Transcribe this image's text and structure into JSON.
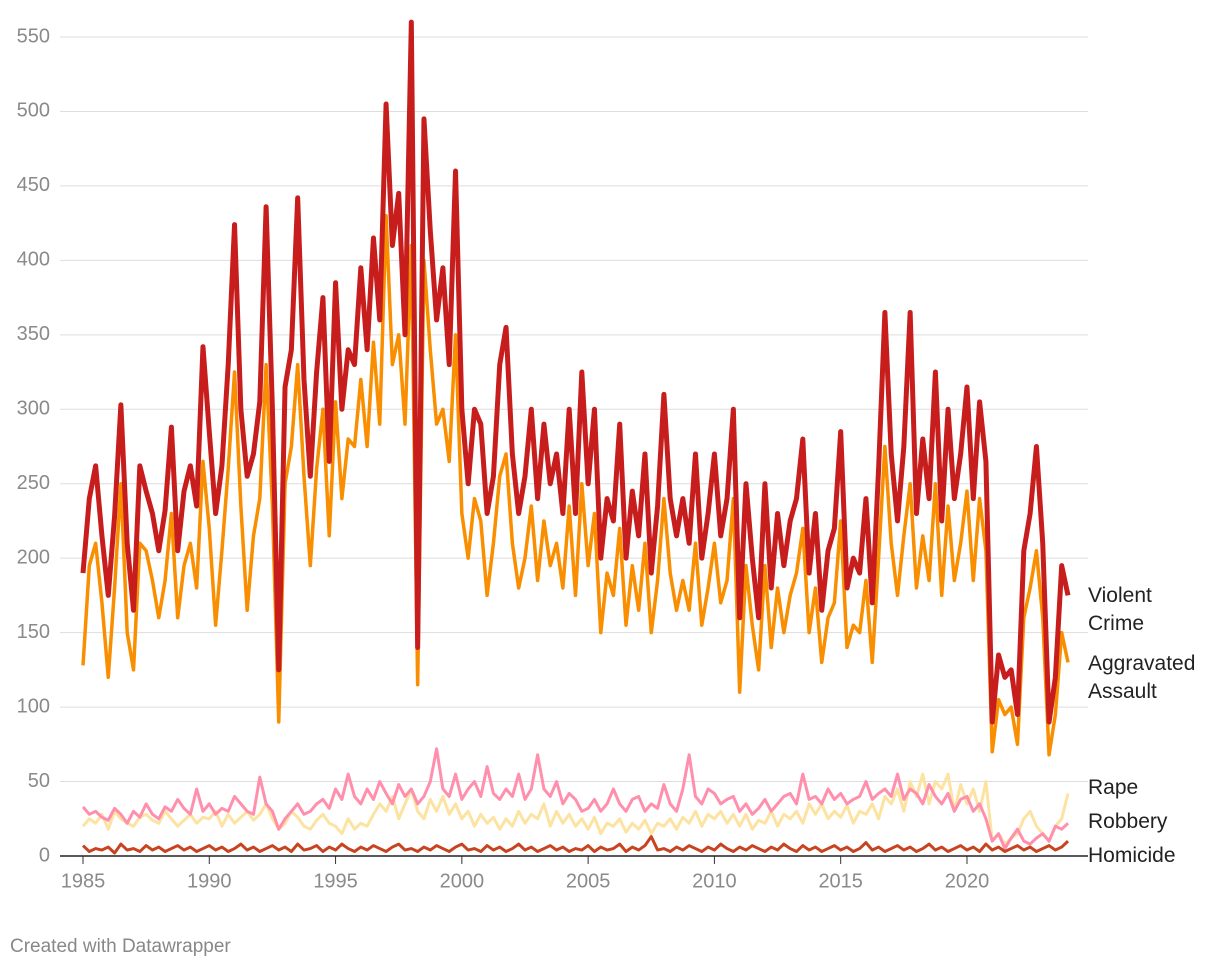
{
  "chart_data": {
    "type": "line",
    "credit": "Created with Datawrapper",
    "xlim": [
      1985,
      2024
    ],
    "xticks": [
      1985,
      1990,
      1995,
      2000,
      2005,
      2010,
      2015,
      2020
    ],
    "ylim": [
      0,
      550
    ],
    "yticks": [
      0,
      50,
      100,
      150,
      200,
      250,
      300,
      350,
      400,
      450,
      500,
      550
    ],
    "grid": true,
    "x": [
      1985,
      1985.25,
      1985.5,
      1985.75,
      1986,
      1986.25,
      1986.5,
      1986.75,
      1987,
      1987.25,
      1987.5,
      1987.75,
      1988,
      1988.25,
      1988.5,
      1988.75,
      1989,
      1989.25,
      1989.5,
      1989.75,
      1990,
      1990.25,
      1990.5,
      1990.75,
      1991,
      1991.25,
      1991.5,
      1991.75,
      1992,
      1992.25,
      1992.5,
      1992.75,
      1993,
      1993.25,
      1993.5,
      1993.75,
      1994,
      1994.25,
      1994.5,
      1994.75,
      1995,
      1995.25,
      1995.5,
      1995.75,
      1996,
      1996.25,
      1996.5,
      1996.75,
      1997,
      1997.25,
      1997.5,
      1997.75,
      1998,
      1998.25,
      1998.5,
      1998.75,
      1999,
      1999.25,
      1999.5,
      1999.75,
      2000,
      2000.25,
      2000.5,
      2000.75,
      2001,
      2001.25,
      2001.5,
      2001.75,
      2002,
      2002.25,
      2002.5,
      2002.75,
      2003,
      2003.25,
      2003.5,
      2003.75,
      2004,
      2004.25,
      2004.5,
      2004.75,
      2005,
      2005.25,
      2005.5,
      2005.75,
      2006,
      2006.25,
      2006.5,
      2006.75,
      2007,
      2007.25,
      2007.5,
      2007.75,
      2008,
      2008.25,
      2008.5,
      2008.75,
      2009,
      2009.25,
      2009.5,
      2009.75,
      2010,
      2010.25,
      2010.5,
      2010.75,
      2011,
      2011.25,
      2011.5,
      2011.75,
      2012,
      2012.25,
      2012.5,
      2012.75,
      2013,
      2013.25,
      2013.5,
      2013.75,
      2014,
      2014.25,
      2014.5,
      2014.75,
      2015,
      2015.25,
      2015.5,
      2015.75,
      2016,
      2016.25,
      2016.5,
      2016.75,
      2017,
      2017.25,
      2017.5,
      2017.75,
      2018,
      2018.25,
      2018.5,
      2018.75,
      2019,
      2019.25,
      2019.5,
      2019.75,
      2020,
      2020.25,
      2020.5,
      2020.75,
      2021,
      2021.25,
      2021.5,
      2021.75,
      2022,
      2022.25,
      2022.5,
      2022.75,
      2023,
      2023.25,
      2023.5,
      2023.75,
      2024
    ],
    "series": [
      {
        "name": "Violent Crime",
        "color": "#c71e1d",
        "values": [
          190,
          240,
          262,
          215,
          175,
          228,
          303,
          210,
          165,
          262,
          245,
          230,
          205,
          232,
          288,
          205,
          245,
          262,
          235,
          342,
          285,
          230,
          262,
          330,
          424,
          300,
          255,
          270,
          305,
          436,
          300,
          125,
          315,
          340,
          442,
          320,
          255,
          325,
          375,
          265,
          385,
          300,
          340,
          330,
          395,
          340,
          415,
          360,
          505,
          410,
          445,
          350,
          560,
          140,
          495,
          420,
          360,
          395,
          330,
          460,
          300,
          250,
          300,
          290,
          230,
          255,
          330,
          355,
          270,
          230,
          255,
          300,
          240,
          290,
          250,
          270,
          230,
          300,
          230,
          325,
          250,
          300,
          200,
          240,
          225,
          290,
          200,
          245,
          215,
          270,
          190,
          235,
          310,
          240,
          215,
          240,
          210,
          270,
          200,
          230,
          270,
          215,
          240,
          300,
          160,
          250,
          200,
          160,
          250,
          180,
          230,
          195,
          225,
          240,
          280,
          190,
          230,
          165,
          205,
          220,
          285,
          180,
          200,
          190,
          240,
          170,
          260,
          365,
          270,
          225,
          275,
          365,
          230,
          280,
          240,
          325,
          225,
          300,
          240,
          270,
          315,
          240,
          305,
          265,
          90,
          135,
          120,
          125,
          95,
          205,
          230,
          275,
          210,
          90,
          120,
          195,
          175
        ]
      },
      {
        "name": "Aggravated Assault",
        "color": "#f98e00",
        "values": [
          128,
          195,
          210,
          170,
          120,
          180,
          250,
          150,
          125,
          210,
          205,
          185,
          160,
          185,
          230,
          160,
          195,
          210,
          180,
          265,
          220,
          155,
          205,
          260,
          325,
          235,
          165,
          215,
          240,
          330,
          235,
          90,
          250,
          275,
          330,
          255,
          195,
          260,
          300,
          215,
          305,
          240,
          280,
          275,
          320,
          275,
          345,
          290,
          430,
          330,
          350,
          290,
          410,
          115,
          400,
          340,
          290,
          300,
          265,
          350,
          230,
          200,
          240,
          225,
          175,
          210,
          255,
          270,
          210,
          180,
          200,
          235,
          185,
          225,
          195,
          210,
          180,
          235,
          175,
          250,
          195,
          230,
          150,
          190,
          175,
          220,
          155,
          195,
          165,
          210,
          150,
          185,
          240,
          190,
          165,
          185,
          165,
          210,
          155,
          180,
          210,
          170,
          185,
          240,
          110,
          195,
          155,
          125,
          195,
          140,
          180,
          150,
          175,
          190,
          220,
          150,
          180,
          130,
          160,
          170,
          225,
          140,
          155,
          150,
          185,
          130,
          200,
          275,
          210,
          175,
          215,
          250,
          180,
          215,
          185,
          250,
          175,
          235,
          185,
          210,
          245,
          185,
          240,
          205,
          70,
          105,
          95,
          100,
          75,
          160,
          180,
          205,
          160,
          68,
          95,
          150,
          130
        ]
      },
      {
        "name": "Rape",
        "color": "#fde3a1",
        "values": [
          20,
          25,
          22,
          28,
          18,
          30,
          25,
          22,
          20,
          26,
          28,
          24,
          22,
          30,
          25,
          20,
          24,
          28,
          22,
          26,
          25,
          30,
          20,
          28,
          22,
          26,
          30,
          24,
          28,
          35,
          25,
          18,
          22,
          30,
          26,
          20,
          18,
          24,
          28,
          22,
          20,
          15,
          25,
          18,
          22,
          20,
          28,
          35,
          30,
          40,
          25,
          35,
          45,
          30,
          25,
          38,
          30,
          40,
          28,
          35,
          25,
          30,
          20,
          28,
          22,
          26,
          18,
          25,
          20,
          30,
          22,
          28,
          25,
          35,
          20,
          30,
          22,
          28,
          20,
          25,
          18,
          26,
          15,
          22,
          20,
          25,
          16,
          22,
          18,
          24,
          15,
          22,
          20,
          25,
          18,
          26,
          22,
          30,
          20,
          28,
          25,
          30,
          22,
          28,
          20,
          28,
          18,
          24,
          22,
          30,
          20,
          28,
          25,
          30,
          22,
          35,
          28,
          35,
          25,
          30,
          26,
          34,
          22,
          30,
          28,
          35,
          25,
          40,
          35,
          45,
          30,
          50,
          40,
          55,
          35,
          50,
          45,
          55,
          30,
          48,
          35,
          45,
          30,
          50,
          10,
          15,
          8,
          12,
          15,
          25,
          30,
          20,
          15,
          10,
          20,
          25,
          42
        ]
      },
      {
        "name": "Robbery",
        "color": "#ff8fac",
        "values": [
          33,
          28,
          30,
          26,
          24,
          32,
          28,
          22,
          30,
          26,
          35,
          28,
          25,
          33,
          30,
          38,
          32,
          28,
          45,
          30,
          35,
          28,
          32,
          30,
          40,
          35,
          30,
          28,
          53,
          35,
          30,
          18,
          25,
          30,
          35,
          28,
          30,
          35,
          38,
          32,
          45,
          38,
          55,
          40,
          35,
          45,
          38,
          50,
          42,
          35,
          48,
          40,
          45,
          35,
          40,
          50,
          72,
          45,
          40,
          55,
          38,
          45,
          50,
          40,
          60,
          42,
          38,
          45,
          40,
          55,
          38,
          45,
          68,
          45,
          40,
          50,
          35,
          42,
          38,
          30,
          32,
          38,
          30,
          35,
          45,
          35,
          30,
          38,
          40,
          30,
          35,
          32,
          48,
          35,
          30,
          45,
          68,
          40,
          35,
          45,
          42,
          35,
          38,
          40,
          30,
          35,
          28,
          32,
          38,
          30,
          35,
          40,
          42,
          35,
          55,
          38,
          40,
          35,
          45,
          38,
          42,
          35,
          38,
          40,
          50,
          38,
          42,
          45,
          40,
          55,
          38,
          45,
          42,
          35,
          48,
          40,
          35,
          42,
          30,
          38,
          40,
          30,
          35,
          25,
          10,
          15,
          5,
          12,
          18,
          10,
          8,
          12,
          15,
          10,
          20,
          18,
          22
        ]
      },
      {
        "name": "Homicide",
        "color": "#c8431f",
        "values": [
          7,
          3,
          5,
          4,
          6,
          2,
          8,
          4,
          5,
          3,
          7,
          4,
          6,
          3,
          5,
          7,
          4,
          6,
          3,
          5,
          7,
          4,
          6,
          3,
          5,
          8,
          4,
          6,
          3,
          5,
          7,
          4,
          6,
          3,
          8,
          4,
          5,
          7,
          3,
          6,
          4,
          8,
          5,
          3,
          6,
          4,
          7,
          5,
          3,
          6,
          8,
          4,
          5,
          3,
          6,
          4,
          7,
          5,
          3,
          6,
          8,
          4,
          5,
          3,
          7,
          4,
          6,
          3,
          5,
          8,
          4,
          6,
          3,
          5,
          7,
          4,
          6,
          3,
          5,
          4,
          7,
          3,
          6,
          4,
          5,
          8,
          3,
          6,
          4,
          7,
          13,
          4,
          5,
          3,
          6,
          4,
          7,
          5,
          3,
          6,
          4,
          8,
          5,
          3,
          6,
          4,
          7,
          5,
          3,
          6,
          4,
          8,
          5,
          3,
          7,
          4,
          6,
          3,
          5,
          7,
          4,
          6,
          3,
          5,
          9,
          4,
          6,
          3,
          5,
          7,
          4,
          6,
          3,
          5,
          8,
          4,
          6,
          3,
          5,
          7,
          4,
          6,
          3,
          8,
          4,
          6,
          3,
          5,
          7,
          4,
          6,
          3,
          5,
          7,
          4,
          6,
          10
        ]
      }
    ]
  }
}
